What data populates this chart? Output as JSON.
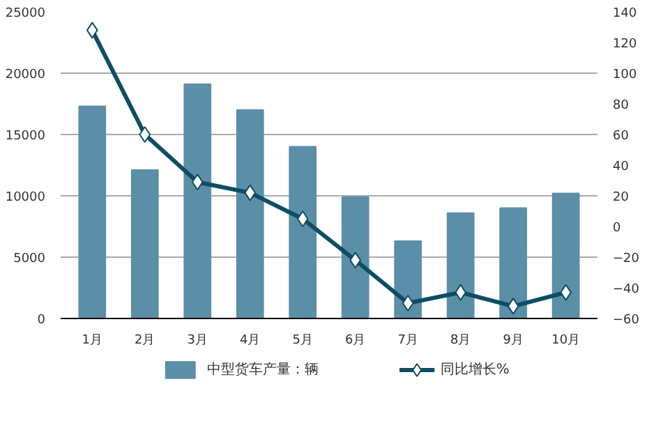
{
  "chart_data": {
    "type": "bar",
    "categories": [
      "1月",
      "2月",
      "3月",
      "4月",
      "5月",
      "6月",
      "7月",
      "8月",
      "9月",
      "10月"
    ],
    "series": [
      {
        "name": "中型货车产量：辆",
        "color": "#5b8fa8",
        "values": [
          17300,
          12100,
          19100,
          17000,
          14000,
          9900,
          6300,
          8600,
          9000,
          10200
        ]
      },
      {
        "name": "同比增长%",
        "type": "line",
        "axis": "y2",
        "color": "#0e4d64",
        "marker": "diamond",
        "values": [
          128,
          60,
          29,
          22,
          5,
          -22,
          -50,
          -43,
          -52,
          -43
        ]
      }
    ],
    "ylim": [
      0,
      25000
    ],
    "yticks": [
      0,
      5000,
      10000,
      15000,
      20000,
      25000
    ],
    "y2lim": [
      -60,
      140
    ],
    "y2ticks": [
      -60,
      -40,
      -20,
      0,
      20,
      40,
      60,
      80,
      100,
      120,
      140
    ],
    "grid": "y",
    "legend": "bottom"
  }
}
